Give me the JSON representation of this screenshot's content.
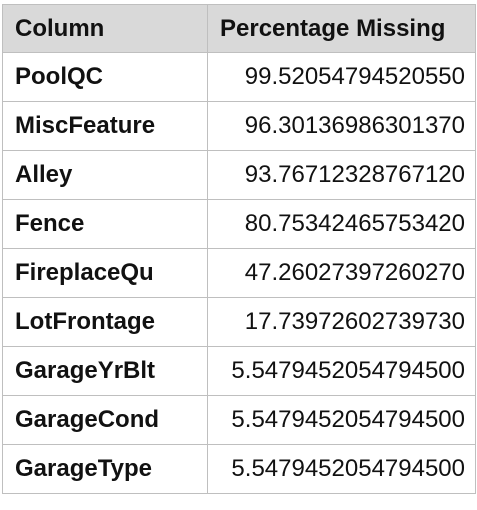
{
  "table": {
    "headers": [
      "Column",
      "Percentage Missing"
    ],
    "rows": [
      {
        "column": "PoolQC",
        "percentage": "99.52054794520550"
      },
      {
        "column": "MiscFeature",
        "percentage": "96.30136986301370"
      },
      {
        "column": "Alley",
        "percentage": "93.76712328767120"
      },
      {
        "column": "Fence",
        "percentage": "80.75342465753420"
      },
      {
        "column": "FireplaceQu",
        "percentage": "47.26027397260270"
      },
      {
        "column": "LotFrontage",
        "percentage": "17.73972602739730"
      },
      {
        "column": "GarageYrBlt",
        "percentage": "5.5479452054794500"
      },
      {
        "column": "GarageCond",
        "percentage": "5.5479452054794500"
      },
      {
        "column": "GarageType",
        "percentage": "5.5479452054794500"
      }
    ]
  },
  "colors": {
    "header_bg": "#d9d9d9",
    "border": "#bfbfbf",
    "text": "#111111"
  }
}
